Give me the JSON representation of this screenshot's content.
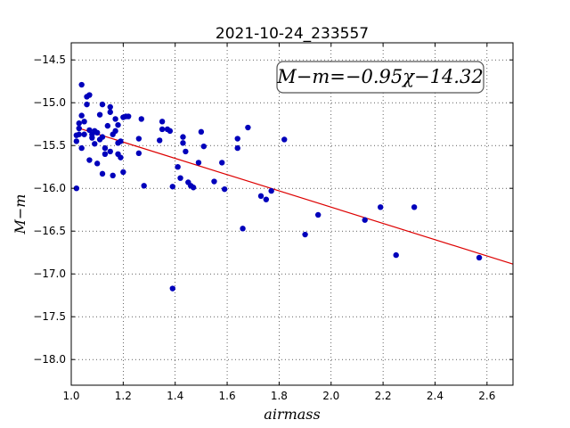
{
  "chart_data": {
    "type": "scatter",
    "title": "2021-10-24_233557",
    "xlabel": "airmass",
    "ylabel": "M−m",
    "xlim": [
      1.0,
      2.7
    ],
    "ylim": [
      -18.3,
      -14.3
    ],
    "x_ticks": [
      "1.0",
      "1.2",
      "1.4",
      "1.6",
      "1.8",
      "2.0",
      "2.2",
      "2.4",
      "2.6"
    ],
    "y_ticks": [
      "−14.5",
      "−15.0",
      "−15.5",
      "−16.0",
      "−16.5",
      "−17.0",
      "−17.5",
      "−18.0"
    ],
    "x_tick_values": [
      1.0,
      1.2,
      1.4,
      1.6,
      1.8,
      2.0,
      2.2,
      2.4,
      2.6
    ],
    "y_tick_values": [
      -14.5,
      -15.0,
      -15.5,
      -16.0,
      -16.5,
      -17.0,
      -17.5,
      -18.0
    ],
    "grid": true,
    "annotation": "M−m=−0.95χ−14.32",
    "fit": {
      "slope": -0.95,
      "intercept": -14.32,
      "x_range": [
        1.02,
        2.7
      ],
      "color": "#dd0000"
    },
    "marker_color": "#0000bb",
    "points": [
      [
        1.02,
        -16.0
      ],
      [
        1.02,
        -15.45
      ],
      [
        1.02,
        -15.38
      ],
      [
        1.03,
        -15.3
      ],
      [
        1.03,
        -15.24
      ],
      [
        1.03,
        -15.37
      ],
      [
        1.04,
        -15.15
      ],
      [
        1.04,
        -15.53
      ],
      [
        1.04,
        -14.79
      ],
      [
        1.05,
        -15.22
      ],
      [
        1.05,
        -15.37
      ],
      [
        1.06,
        -14.93
      ],
      [
        1.06,
        -15.02
      ],
      [
        1.07,
        -14.91
      ],
      [
        1.07,
        -15.32
      ],
      [
        1.07,
        -15.67
      ],
      [
        1.08,
        -15.41
      ],
      [
        1.08,
        -15.37
      ],
      [
        1.09,
        -15.33
      ],
      [
        1.09,
        -15.48
      ],
      [
        1.1,
        -15.35
      ],
      [
        1.1,
        -15.71
      ],
      [
        1.11,
        -15.43
      ],
      [
        1.11,
        -15.14
      ],
      [
        1.12,
        -15.02
      ],
      [
        1.12,
        -15.4
      ],
      [
        1.12,
        -15.83
      ],
      [
        1.13,
        -15.53
      ],
      [
        1.13,
        -15.6
      ],
      [
        1.14,
        -15.27
      ],
      [
        1.15,
        -15.11
      ],
      [
        1.15,
        -15.05
      ],
      [
        1.15,
        -15.57
      ],
      [
        1.16,
        -15.37
      ],
      [
        1.16,
        -15.85
      ],
      [
        1.17,
        -15.19
      ],
      [
        1.17,
        -15.33
      ],
      [
        1.18,
        -15.47
      ],
      [
        1.18,
        -15.26
      ],
      [
        1.18,
        -15.6
      ],
      [
        1.19,
        -15.45
      ],
      [
        1.19,
        -15.64
      ],
      [
        1.2,
        -15.17
      ],
      [
        1.2,
        -15.81
      ],
      [
        1.21,
        -15.16
      ],
      [
        1.22,
        -15.16
      ],
      [
        1.26,
        -15.42
      ],
      [
        1.26,
        -15.59
      ],
      [
        1.27,
        -15.19
      ],
      [
        1.28,
        -15.97
      ],
      [
        1.34,
        -15.44
      ],
      [
        1.35,
        -15.22
      ],
      [
        1.35,
        -15.31
      ],
      [
        1.37,
        -15.31
      ],
      [
        1.38,
        -15.33
      ],
      [
        1.39,
        -15.98
      ],
      [
        1.39,
        -17.17
      ],
      [
        1.41,
        -15.75
      ],
      [
        1.42,
        -15.88
      ],
      [
        1.43,
        -15.47
      ],
      [
        1.43,
        -15.4
      ],
      [
        1.44,
        -15.57
      ],
      [
        1.45,
        -15.93
      ],
      [
        1.46,
        -15.97
      ],
      [
        1.47,
        -15.99
      ],
      [
        1.49,
        -15.7
      ],
      [
        1.5,
        -15.34
      ],
      [
        1.51,
        -15.51
      ],
      [
        1.55,
        -15.92
      ],
      [
        1.58,
        -15.7
      ],
      [
        1.59,
        -16.01
      ],
      [
        1.64,
        -15.42
      ],
      [
        1.64,
        -15.53
      ],
      [
        1.66,
        -16.47
      ],
      [
        1.68,
        -15.29
      ],
      [
        1.73,
        -16.09
      ],
      [
        1.75,
        -16.13
      ],
      [
        1.77,
        -16.03
      ],
      [
        1.82,
        -15.43
      ],
      [
        1.9,
        -16.54
      ],
      [
        1.95,
        -16.31
      ],
      [
        2.13,
        -16.37
      ],
      [
        2.19,
        -16.22
      ],
      [
        2.25,
        -16.78
      ],
      [
        2.32,
        -16.22
      ],
      [
        2.57,
        -16.81
      ]
    ]
  }
}
